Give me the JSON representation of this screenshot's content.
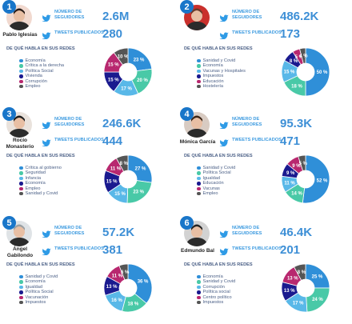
{
  "labels": {
    "followers": "NÚMERO DE SEGUIDORES",
    "tweets": "TWEETS PUBLICADOS",
    "topics": "DE QUÉ HABLA EN SUS REDES"
  },
  "colors": {
    "accent": "#3d8fd6",
    "rank_badge": "#1976c9",
    "twitter": "#2f9be6"
  },
  "chart_data": [
    {
      "type": "pie",
      "rank": "1",
      "name": "Pablo Iglesias",
      "followers": "2.6M",
      "tweets": "280",
      "categories": [
        "Economía",
        "Crítica a la derecha",
        "Política Social",
        "Vivienda",
        "Corrupción",
        "Empleo"
      ],
      "values": [
        23,
        20,
        17,
        15,
        15,
        10
      ],
      "colors": [
        "#2f8fd8",
        "#49c9a7",
        "#59b8e8",
        "#1a1a8f",
        "#b8286f",
        "#555555"
      ]
    },
    {
      "type": "pie",
      "rank": "2",
      "name": "",
      "followers": "486.2K",
      "tweets": "173",
      "categories": [
        "Sanidad y Covid",
        "Economía",
        "Vacunas y Hospitales",
        "Impuestos",
        "Educación",
        "Hostelería"
      ],
      "values": [
        50,
        18,
        15,
        8,
        5,
        4
      ],
      "colors": [
        "#2f8fd8",
        "#49c9a7",
        "#59b8e8",
        "#1a1a8f",
        "#b8286f",
        "#555555"
      ]
    },
    {
      "type": "pie",
      "rank": "3",
      "name": "Rocío Monasterio",
      "followers": "246.6K",
      "tweets": "444",
      "categories": [
        "Crítica al gobierno",
        "Seguridad",
        "Infancia",
        "Economía",
        "Empleo",
        "Sanidad y Covid"
      ],
      "values": [
        27,
        23,
        15,
        15,
        11,
        8
      ],
      "colors": [
        "#2f8fd8",
        "#49c9a7",
        "#59b8e8",
        "#1a1a8f",
        "#b8286f",
        "#555555"
      ]
    },
    {
      "type": "pie",
      "rank": "4",
      "name": "Mónica García",
      "followers": "95.3K",
      "tweets": "471",
      "categories": [
        "Sanidad y Covid",
        "Política Social",
        "Igualdad",
        "Educación",
        "Vacunas",
        "Empleo"
      ],
      "values": [
        52,
        14,
        11,
        9,
        9,
        5
      ],
      "colors": [
        "#2f8fd8",
        "#49c9a7",
        "#59b8e8",
        "#1a1a8f",
        "#b8286f",
        "#555555"
      ]
    },
    {
      "type": "pie",
      "rank": "5",
      "name": "Ángel Gabilondo",
      "followers": "57.2K",
      "tweets": "381",
      "categories": [
        "Sanidad y Covid",
        "Economía",
        "Igualdad",
        "Política Social",
        "Vacunación",
        "Impuestos"
      ],
      "values": [
        36,
        18,
        16,
        13,
        11,
        6
      ],
      "colors": [
        "#2f8fd8",
        "#49c9a7",
        "#59b8e8",
        "#1a1a8f",
        "#b8286f",
        "#555555"
      ]
    },
    {
      "type": "pie",
      "rank": "6",
      "name": "Edmundo Bal",
      "followers": "46.4K",
      "tweets": "201",
      "categories": [
        "Economía",
        "Sanidad y Covid",
        "Corrupción",
        "Política social",
        "Centro político",
        "Impuestos"
      ],
      "values": [
        25,
        24,
        17,
        13,
        13,
        8
      ],
      "colors": [
        "#2f8fd8",
        "#49c9a7",
        "#59b8e8",
        "#1a1a8f",
        "#b8286f",
        "#555555"
      ]
    }
  ]
}
